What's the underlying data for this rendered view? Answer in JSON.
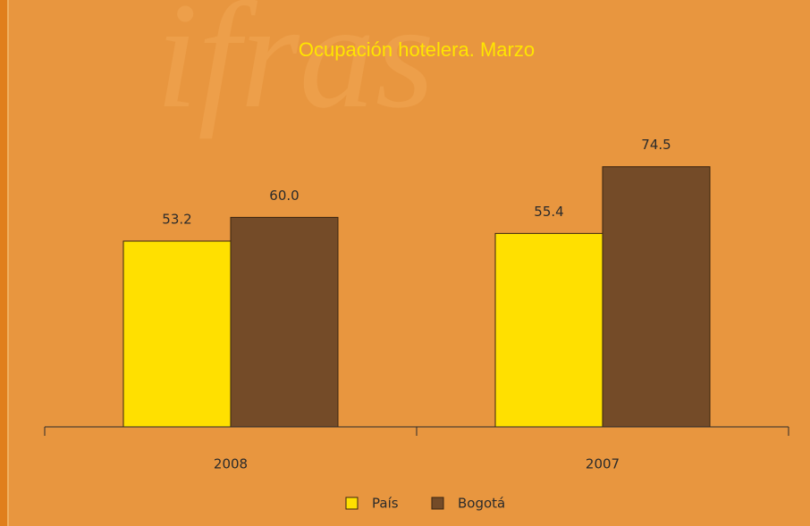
{
  "chart_data": {
    "type": "bar",
    "watermark": "ifras",
    "title": "Ocupación hotelera. Marzo",
    "categories": [
      "2008",
      "2007"
    ],
    "series": [
      {
        "name": "País",
        "color": "#ffe000",
        "values": [
          53.2,
          55.4
        ],
        "value_labels": [
          "53.2",
          "55.4"
        ]
      },
      {
        "name": "Bogotá",
        "color": "#744b28",
        "values": [
          60.0,
          74.5
        ],
        "value_labels": [
          "60.0",
          "74.5"
        ]
      }
    ],
    "ylim": [
      0,
      100
    ]
  }
}
